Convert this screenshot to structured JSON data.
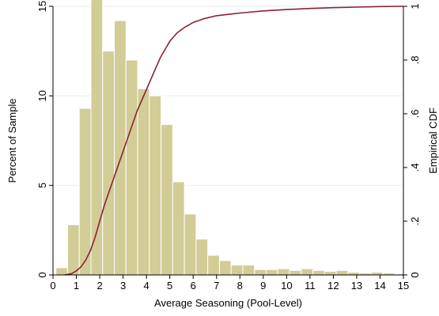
{
  "chart_data": {
    "type": "bar",
    "xlabel": "Average Seasoning (Pool-Level)",
    "ylabel": "Percent of Sample",
    "y2label": "Empirical CDF",
    "xlim": [
      0,
      15
    ],
    "ylim": [
      0,
      15
    ],
    "y2lim": [
      0,
      1
    ],
    "x_ticks": [
      "0",
      "1",
      "2",
      "3",
      "4",
      "5",
      "6",
      "7",
      "8",
      "9",
      "10",
      "11",
      "12",
      "13",
      "14",
      "15"
    ],
    "y_ticks": [
      "0",
      "5",
      "10",
      "15"
    ],
    "y2_ticks": [
      "0",
      ".2",
      ".4",
      ".6",
      ".8",
      "1"
    ],
    "grid": "horizontal",
    "bin_width": 0.5,
    "bins": [
      {
        "x": 0.375,
        "value": 0.4
      },
      {
        "x": 0.875,
        "value": 2.8
      },
      {
        "x": 1.375,
        "value": 9.3
      },
      {
        "x": 1.875,
        "value": 15.6
      },
      {
        "x": 2.375,
        "value": 12.5
      },
      {
        "x": 2.875,
        "value": 14.2
      },
      {
        "x": 3.375,
        "value": 12.0
      },
      {
        "x": 3.875,
        "value": 10.4
      },
      {
        "x": 4.375,
        "value": 10.0
      },
      {
        "x": 4.875,
        "value": 8.4
      },
      {
        "x": 5.375,
        "value": 5.2
      },
      {
        "x": 5.875,
        "value": 3.4
      },
      {
        "x": 6.375,
        "value": 2.0
      },
      {
        "x": 6.875,
        "value": 1.1
      },
      {
        "x": 7.375,
        "value": 0.8
      },
      {
        "x": 7.875,
        "value": 0.55
      },
      {
        "x": 8.375,
        "value": 0.55
      },
      {
        "x": 8.875,
        "value": 0.3
      },
      {
        "x": 9.375,
        "value": 0.3
      },
      {
        "x": 9.875,
        "value": 0.35
      },
      {
        "x": 10.375,
        "value": 0.25
      },
      {
        "x": 10.875,
        "value": 0.35
      },
      {
        "x": 11.375,
        "value": 0.25
      },
      {
        "x": 11.875,
        "value": 0.2
      },
      {
        "x": 12.375,
        "value": 0.25
      },
      {
        "x": 12.875,
        "value": 0.15
      },
      {
        "x": 13.375,
        "value": 0.1
      },
      {
        "x": 13.875,
        "value": 0.15
      },
      {
        "x": 14.375,
        "value": 0.1
      },
      {
        "x": 14.875,
        "value": 0.05
      }
    ],
    "cdf": {
      "x": [
        0.5,
        0.8,
        1.0,
        1.2,
        1.4,
        1.6,
        1.8,
        2.0,
        2.2,
        2.4,
        2.6,
        2.8,
        3.0,
        3.2,
        3.4,
        3.6,
        3.8,
        4.0,
        4.2,
        4.4,
        4.6,
        4.8,
        5.0,
        5.3,
        5.6,
        6.0,
        6.5,
        7.0,
        7.5,
        8.0,
        9.0,
        10.0,
        11.0,
        12.0,
        13.0,
        14.0,
        15.0
      ],
      "y": [
        0.0,
        0.005,
        0.015,
        0.03,
        0.055,
        0.09,
        0.14,
        0.2,
        0.26,
        0.31,
        0.36,
        0.41,
        0.46,
        0.51,
        0.56,
        0.61,
        0.65,
        0.69,
        0.73,
        0.77,
        0.81,
        0.84,
        0.87,
        0.9,
        0.92,
        0.94,
        0.955,
        0.965,
        0.97,
        0.975,
        0.983,
        0.988,
        0.992,
        0.995,
        0.997,
        0.999,
        1.0
      ]
    },
    "colors": {
      "bar_fill": "#d2cc96",
      "bar_stroke": "#ffffff",
      "cdf_line": "#8b2232",
      "grid": "#e6eef0",
      "axis": "#000000"
    }
  }
}
